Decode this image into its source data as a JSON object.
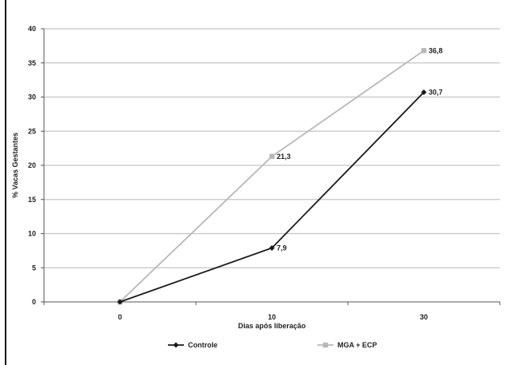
{
  "chart_data": {
    "type": "line",
    "title": "",
    "xlabel": "Dias após liberação",
    "ylabel": "% Vacas Gestantes",
    "categories": [
      "0",
      "10",
      "30"
    ],
    "ylim": [
      0,
      40
    ],
    "yticks": [
      0,
      5,
      10,
      15,
      20,
      25,
      30,
      35,
      40
    ],
    "grid": true,
    "legend_position": "bottom",
    "series": [
      {
        "name": "Controle",
        "values": [
          0,
          7.9,
          30.7
        ],
        "labels": [
          "",
          "7,9",
          "30,7"
        ],
        "color": "#1a1a1a",
        "marker": "diamond"
      },
      {
        "name": "MGA + ECP",
        "values": [
          0,
          21.3,
          36.8
        ],
        "labels": [
          "",
          "21,3",
          "36,8"
        ],
        "color": "#b8b8b8",
        "marker": "square"
      }
    ]
  }
}
